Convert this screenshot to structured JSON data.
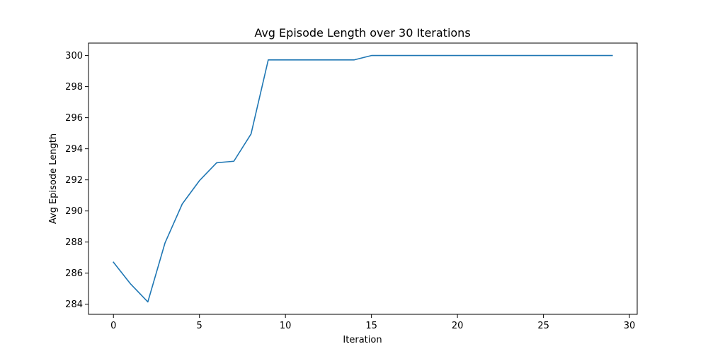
{
  "chart_data": {
    "type": "line",
    "title": "Avg Episode Length over 30 Iterations",
    "xlabel": "Iteration",
    "ylabel": "Avg Episode Length",
    "xlim": [
      -1.45,
      30.45
    ],
    "ylim": [
      283.35,
      300.8
    ],
    "xticks": [
      0,
      5,
      10,
      15,
      20,
      25,
      30
    ],
    "yticks": [
      284,
      286,
      288,
      290,
      292,
      294,
      296,
      298,
      300
    ],
    "grid": false,
    "legend": "none",
    "series": [
      {
        "color": "#1f77b4",
        "x": [
          0,
          1,
          2,
          3,
          4,
          5,
          6,
          7,
          8,
          9,
          10,
          11,
          12,
          13,
          14,
          15,
          16,
          17,
          18,
          19,
          20,
          21,
          22,
          23,
          24,
          25,
          26,
          27,
          28,
          29
        ],
        "values": [
          286.7,
          285.3,
          284.15,
          287.95,
          290.45,
          291.95,
          293.1,
          293.2,
          294.95,
          299.72,
          299.72,
          299.72,
          299.72,
          299.72,
          299.72,
          300.0,
          300.0,
          300.0,
          300.0,
          300.0,
          300.0,
          300.0,
          300.0,
          300.0,
          300.0,
          300.0,
          300.0,
          300.0,
          300.0,
          300.0
        ]
      }
    ]
  }
}
